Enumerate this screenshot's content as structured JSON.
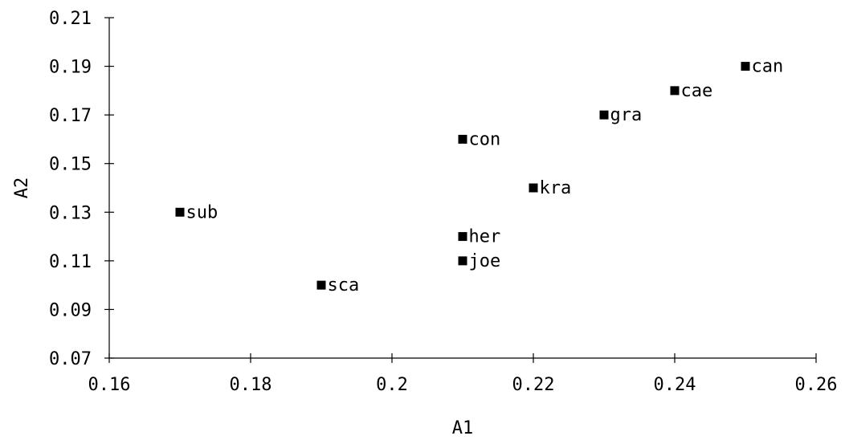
{
  "chart_data": {
    "type": "scatter",
    "xlabel": "A1",
    "ylabel": "A2",
    "xlim": [
      0.16,
      0.26
    ],
    "ylim": [
      0.07,
      0.21
    ],
    "x_ticks": [
      "0.16",
      "0.18",
      "0.2",
      "0.22",
      "0.24",
      "0.26"
    ],
    "y_ticks": [
      "0.07",
      "0.09",
      "0.11",
      "0.13",
      "0.15",
      "0.17",
      "0.19",
      "0.21"
    ],
    "grid": false,
    "marker": "square",
    "marker_color": "#000000",
    "points": [
      {
        "label": "sub",
        "x": 0.17,
        "y": 0.13
      },
      {
        "label": "sca",
        "x": 0.19,
        "y": 0.1
      },
      {
        "label": "con",
        "x": 0.21,
        "y": 0.16
      },
      {
        "label": "her",
        "x": 0.21,
        "y": 0.12
      },
      {
        "label": "joe",
        "x": 0.21,
        "y": 0.11
      },
      {
        "label": "kra",
        "x": 0.22,
        "y": 0.14
      },
      {
        "label": "gra",
        "x": 0.23,
        "y": 0.17
      },
      {
        "label": "cae",
        "x": 0.24,
        "y": 0.18
      },
      {
        "label": "can",
        "x": 0.25,
        "y": 0.19
      }
    ]
  }
}
